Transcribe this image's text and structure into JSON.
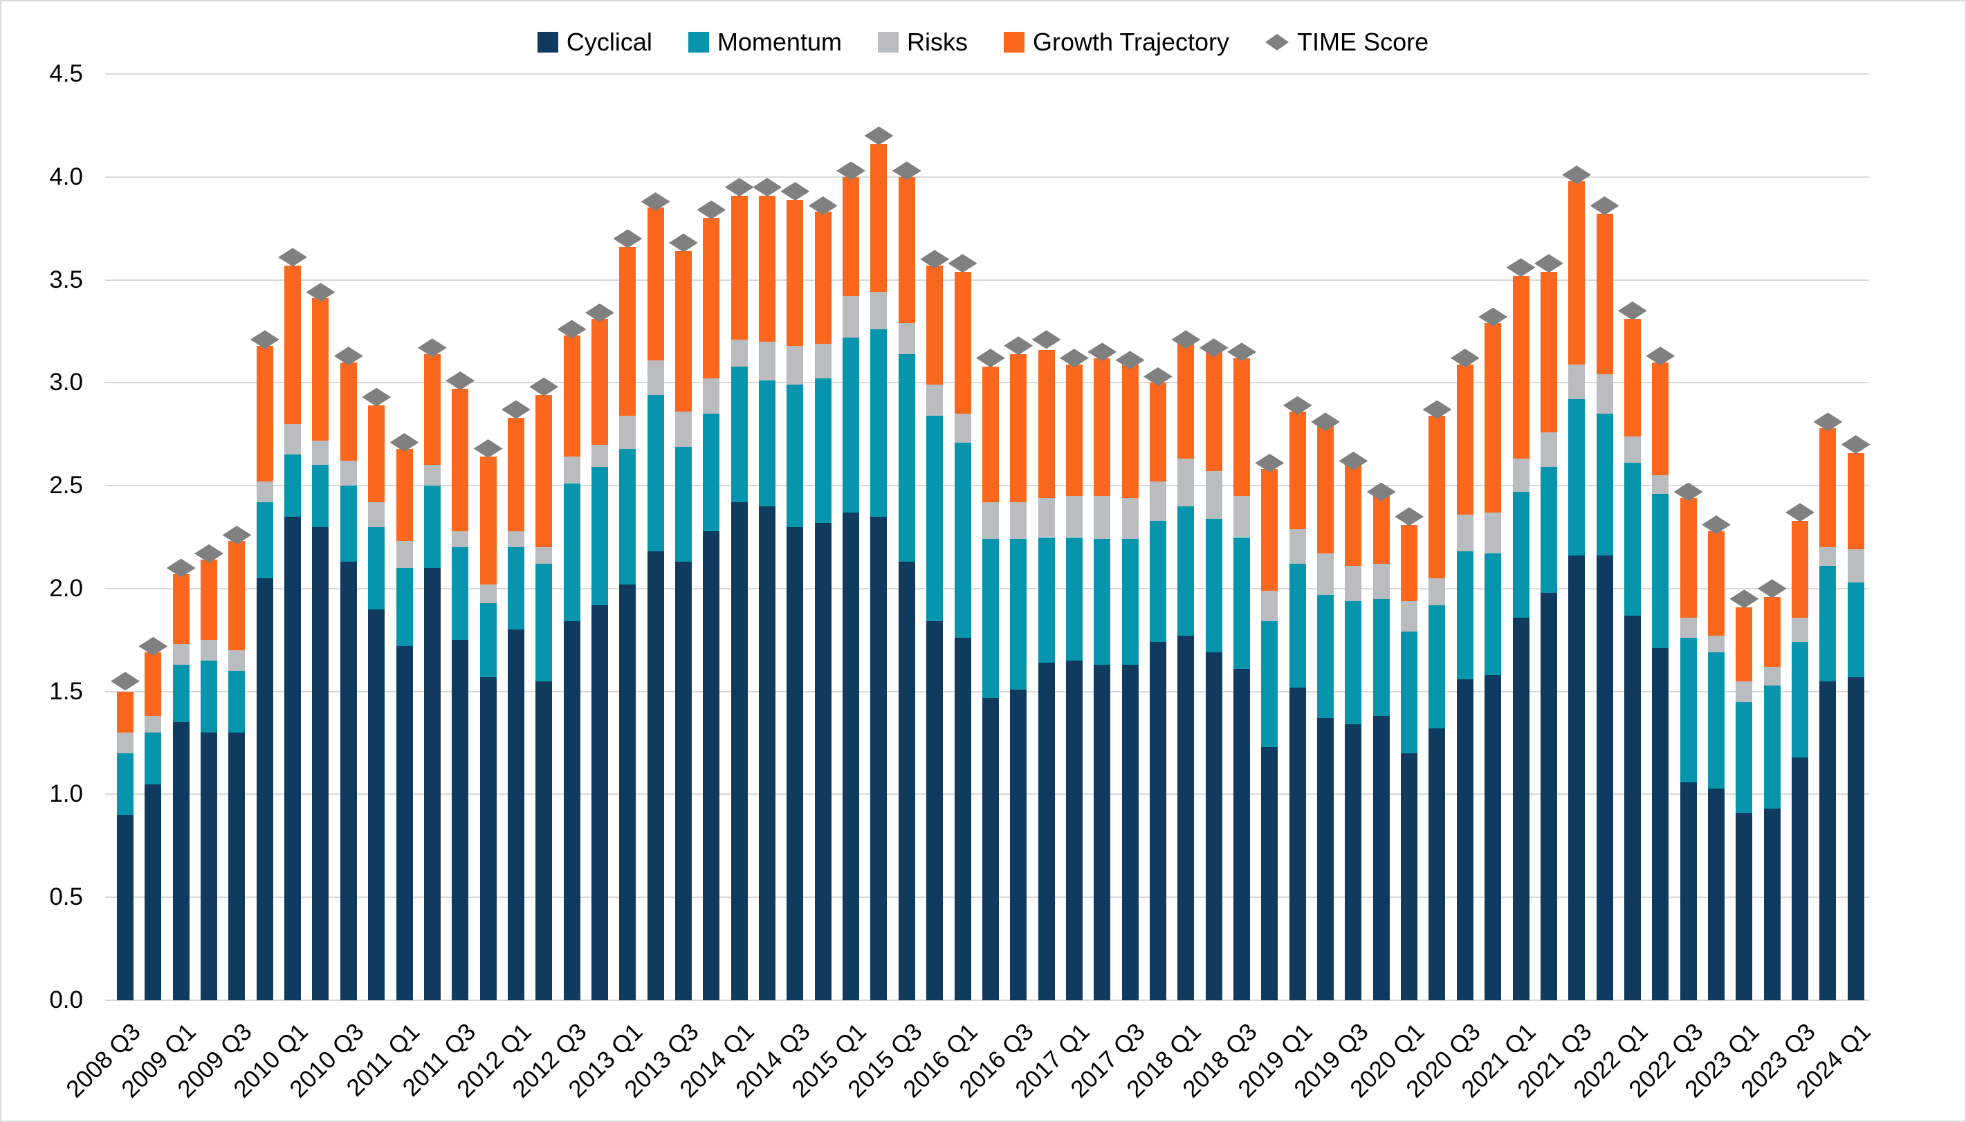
{
  "legend": {
    "items": [
      {
        "label": "Cyclical",
        "color": "#103A5E",
        "marker": "square"
      },
      {
        "label": "Momentum",
        "color": "#0795AD",
        "marker": "square"
      },
      {
        "label": "Risks",
        "color": "#B9BDBF",
        "marker": "square"
      },
      {
        "label": "Growth Trajectory",
        "color": "#FB671D",
        "marker": "square"
      },
      {
        "label": "TIME Score",
        "color": "#808080",
        "marker": "diamond"
      }
    ]
  },
  "y_axis": {
    "tick_labels": [
      "0.0",
      "0.5",
      "1.0",
      "1.5",
      "2.0",
      "2.5",
      "3.0",
      "3.5",
      "4.0",
      "4.5"
    ],
    "min": 0.0,
    "max": 4.5,
    "step": 0.5
  },
  "x_axis": {
    "tick_labels": [
      "2008 Q3",
      "2009 Q1",
      "2009 Q3",
      "2010 Q1",
      "2010 Q3",
      "2011 Q1",
      "2011 Q3",
      "2012 Q1",
      "2012 Q3",
      "2013 Q1",
      "2013 Q3",
      "2014 Q1",
      "2014 Q3",
      "2015 Q1",
      "2015 Q3",
      "2016 Q1",
      "2016 Q3",
      "2017 Q1",
      "2017 Q3",
      "2018 Q1",
      "2018 Q3",
      "2019 Q1",
      "2019 Q3",
      "2020 Q1",
      "2020 Q3",
      "2021 Q1",
      "2021 Q3",
      "2022 Q1",
      "2022 Q3",
      "2023 Q1",
      "2023 Q3",
      "2024 Q1"
    ],
    "label_every_n_bars": 2
  },
  "chart_data": {
    "type": "bar",
    "stacked": true,
    "title": "",
    "xlabel": "",
    "ylabel": "",
    "ylim": [
      0,
      4.5
    ],
    "grid": true,
    "legend_position": "top",
    "categories": [
      "2008 Q3",
      "2008 Q4",
      "2009 Q1",
      "2009 Q2",
      "2009 Q3",
      "2009 Q4",
      "2010 Q1",
      "2010 Q2",
      "2010 Q3",
      "2010 Q4",
      "2011 Q1",
      "2011 Q2",
      "2011 Q3",
      "2011 Q4",
      "2012 Q1",
      "2012 Q2",
      "2012 Q3",
      "2012 Q4",
      "2013 Q1",
      "2013 Q2",
      "2013 Q3",
      "2013 Q4",
      "2014 Q1",
      "2014 Q2",
      "2014 Q3",
      "2014 Q4",
      "2015 Q1",
      "2015 Q2",
      "2015 Q3",
      "2015 Q4",
      "2016 Q1",
      "2016 Q2",
      "2016 Q3",
      "2016 Q4",
      "2017 Q1",
      "2017 Q2",
      "2017 Q3",
      "2017 Q4",
      "2018 Q1",
      "2018 Q2",
      "2018 Q3",
      "2018 Q4",
      "2019 Q1",
      "2019 Q2",
      "2019 Q3",
      "2019 Q4",
      "2020 Q1",
      "2020 Q2",
      "2020 Q3",
      "2020 Q4",
      "2021 Q1",
      "2021 Q2",
      "2021 Q3",
      "2021 Q4",
      "2022 Q1",
      "2022 Q2",
      "2022 Q3",
      "2022 Q4",
      "2023 Q1",
      "2023 Q2",
      "2023 Q3",
      "2023 Q4",
      "2024 Q1"
    ],
    "series": [
      {
        "name": "Cyclical",
        "color": "#103A5E",
        "values": [
          0.9,
          1.05,
          1.35,
          1.3,
          1.3,
          2.05,
          2.35,
          2.3,
          2.13,
          1.9,
          1.72,
          2.1,
          1.75,
          1.57,
          1.8,
          1.55,
          1.84,
          1.92,
          2.02,
          2.18,
          2.13,
          2.28,
          2.42,
          2.4,
          2.3,
          2.32,
          2.37,
          2.35,
          2.13,
          1.84,
          1.76,
          1.47,
          1.51,
          1.64,
          1.65,
          1.63,
          1.63,
          1.74,
          1.77,
          1.69,
          1.61,
          1.23,
          1.52,
          1.37,
          1.34,
          1.38,
          1.2,
          1.32,
          1.56,
          1.58,
          1.86,
          1.98,
          2.16,
          2.16,
          1.87,
          1.71,
          1.06,
          1.03,
          0.91,
          0.93,
          1.18,
          1.55,
          1.57
        ]
      },
      {
        "name": "Momentum",
        "color": "#0795AD",
        "values": [
          0.3,
          0.25,
          0.28,
          0.35,
          0.3,
          0.37,
          0.3,
          0.3,
          0.37,
          0.4,
          0.38,
          0.4,
          0.45,
          0.36,
          0.4,
          0.57,
          0.67,
          0.67,
          0.66,
          0.76,
          0.56,
          0.57,
          0.66,
          0.61,
          0.69,
          0.7,
          0.85,
          0.91,
          1.01,
          1.0,
          0.95,
          0.77,
          0.73,
          0.61,
          0.6,
          0.61,
          0.61,
          0.59,
          0.63,
          0.65,
          0.64,
          0.61,
          0.6,
          0.6,
          0.6,
          0.57,
          0.59,
          0.6,
          0.62,
          0.59,
          0.61,
          0.61,
          0.76,
          0.69,
          0.74,
          0.75,
          0.7,
          0.66,
          0.54,
          0.6,
          0.56,
          0.56,
          0.46
        ]
      },
      {
        "name": "Risks",
        "color": "#B9BDBF",
        "values": [
          0.1,
          0.08,
          0.1,
          0.1,
          0.1,
          0.1,
          0.15,
          0.12,
          0.12,
          0.12,
          0.13,
          0.1,
          0.08,
          0.09,
          0.08,
          0.08,
          0.13,
          0.11,
          0.16,
          0.17,
          0.17,
          0.17,
          0.13,
          0.19,
          0.19,
          0.17,
          0.2,
          0.18,
          0.15,
          0.15,
          0.14,
          0.18,
          0.18,
          0.19,
          0.2,
          0.21,
          0.2,
          0.19,
          0.23,
          0.23,
          0.2,
          0.15,
          0.17,
          0.2,
          0.17,
          0.17,
          0.15,
          0.13,
          0.18,
          0.2,
          0.16,
          0.17,
          0.17,
          0.19,
          0.13,
          0.09,
          0.1,
          0.08,
          0.1,
          0.09,
          0.12,
          0.09,
          0.16
        ]
      },
      {
        "name": "Growth Trajectory",
        "color": "#FB671D",
        "values": [
          0.2,
          0.31,
          0.34,
          0.39,
          0.53,
          0.66,
          0.77,
          0.69,
          0.48,
          0.47,
          0.45,
          0.54,
          0.69,
          0.62,
          0.55,
          0.74,
          0.59,
          0.61,
          0.82,
          0.74,
          0.78,
          0.78,
          0.7,
          0.71,
          0.71,
          0.64,
          0.58,
          0.72,
          0.71,
          0.58,
          0.69,
          0.66,
          0.72,
          0.72,
          0.64,
          0.67,
          0.65,
          0.48,
          0.56,
          0.58,
          0.67,
          0.59,
          0.57,
          0.62,
          0.49,
          0.33,
          0.37,
          0.79,
          0.73,
          0.92,
          0.89,
          0.78,
          0.89,
          0.78,
          0.57,
          0.55,
          0.58,
          0.51,
          0.36,
          0.34,
          0.47,
          0.58,
          0.47
        ]
      }
    ],
    "scatter_series": {
      "name": "TIME Score",
      "marker": "diamond",
      "color": "#808080",
      "values": [
        1.55,
        1.72,
        2.1,
        2.17,
        2.26,
        3.21,
        3.61,
        3.44,
        3.13,
        2.93,
        2.71,
        3.17,
        3.01,
        2.68,
        2.87,
        2.98,
        3.26,
        3.34,
        3.7,
        3.88,
        3.68,
        3.84,
        3.95,
        3.95,
        3.93,
        3.86,
        4.03,
        4.2,
        4.03,
        3.6,
        3.58,
        3.12,
        3.18,
        3.21,
        3.12,
        3.15,
        3.11,
        3.03,
        3.21,
        3.17,
        3.15,
        2.61,
        2.89,
        2.81,
        2.62,
        2.47,
        2.35,
        2.87,
        3.12,
        3.32,
        3.56,
        3.58,
        4.01,
        3.86,
        3.35,
        3.13,
        2.47,
        2.31,
        1.95,
        2.0,
        2.37,
        2.81,
        2.7
      ]
    }
  },
  "style": {
    "background_color": "#FFFFFF",
    "gridline_color": "#D9D9D9",
    "text_color": "#000000"
  }
}
